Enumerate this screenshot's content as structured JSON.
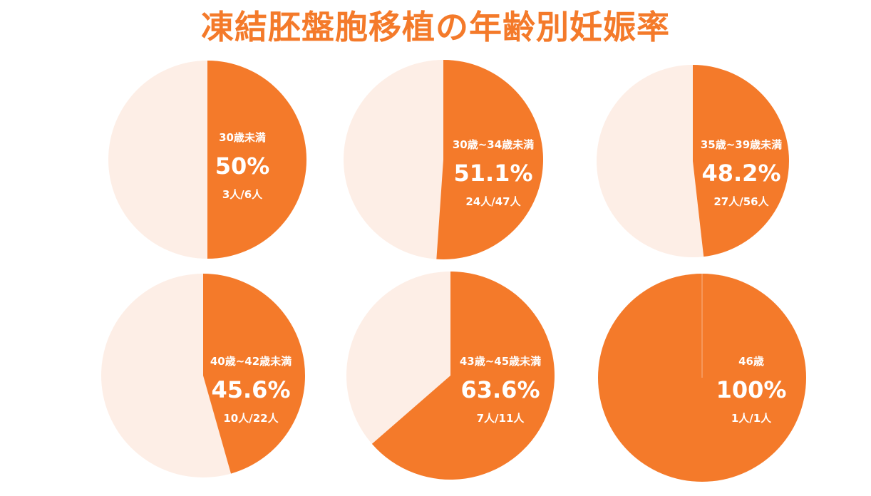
{
  "title": "凍結胚盤胞移植の年齢別妊娠率",
  "colors": {
    "accent": "#f47a2a",
    "rest": "#fdeee6",
    "label": "#ffffff"
  },
  "chart_data": [
    {
      "type": "pie",
      "category": "30歳未満",
      "percent_label": "50%",
      "value": 50,
      "count_label": "3人/6人",
      "success": 3,
      "total": 6
    },
    {
      "type": "pie",
      "category": "30歳~34歳未満",
      "percent_label": "51.1%",
      "value": 51.1,
      "count_label": "24人/47人",
      "success": 24,
      "total": 47
    },
    {
      "type": "pie",
      "category": "35歳~39歳未満",
      "percent_label": "48.2%",
      "value": 48.2,
      "count_label": "27人/56人",
      "success": 27,
      "total": 56
    },
    {
      "type": "pie",
      "category": "40歳~42歳未満",
      "percent_label": "45.6%",
      "value": 45.6,
      "count_label": "10人/22人",
      "success": 10,
      "total": 22
    },
    {
      "type": "pie",
      "category": "43歳~45歳未満",
      "percent_label": "63.6%",
      "value": 63.6,
      "count_label": "7人/11人",
      "success": 7,
      "total": 11
    },
    {
      "type": "pie",
      "category": "46歳",
      "percent_label": "100%",
      "value": 100,
      "count_label": "1人/1人",
      "success": 1,
      "total": 1
    }
  ]
}
